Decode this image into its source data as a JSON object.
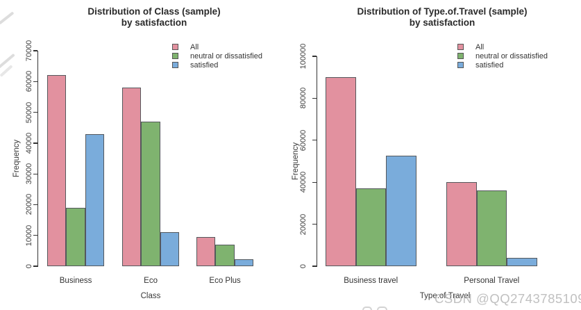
{
  "watermark": {
    "text": "CSDN @QQ2743785109",
    "color": "#b1b1b1"
  },
  "colors": {
    "all": "#e2919f",
    "neutral_or_dissatisfied": "#7fb36f",
    "satisfied": "#7aacdb",
    "bar_border": "#54585c",
    "axis": "#333333"
  },
  "chart_data": [
    {
      "type": "bar",
      "title": "Distribution of Class (sample)",
      "subtitle": "by satisfaction",
      "xlabel": "Class",
      "ylabel": "Frequency",
      "categories": [
        "Business",
        "Eco",
        "Eco Plus"
      ],
      "series": [
        {
          "name": "All",
          "color": "#e2919f",
          "values": [
            62000,
            58000,
            9500
          ]
        },
        {
          "name": "neutral or dissatisfied",
          "color": "#7fb36f",
          "values": [
            19000,
            47000,
            7000
          ]
        },
        {
          "name": "satisfied",
          "color": "#7aacdb",
          "values": [
            43000,
            11000,
            2300
          ]
        }
      ],
      "ylim": [
        0,
        70000
      ],
      "yticks": [
        0,
        10000,
        20000,
        30000,
        40000,
        50000,
        60000,
        70000
      ],
      "grid": false,
      "legend_position": "top-right"
    },
    {
      "type": "bar",
      "title": "Distribution of Type.of.Travel (sample)",
      "subtitle": "by satisfaction",
      "xlabel": "Type.of.Travel",
      "ylabel": "Frequency",
      "categories": [
        "Business travel",
        "Personal Travel"
      ],
      "series": [
        {
          "name": "All",
          "color": "#e2919f",
          "values": [
            90000,
            40000
          ]
        },
        {
          "name": "neutral or dissatisfied",
          "color": "#7fb36f",
          "values": [
            37000,
            36000
          ]
        },
        {
          "name": "satisfied",
          "color": "#7aacdb",
          "values": [
            52500,
            4000
          ]
        }
      ],
      "ylim": [
        0,
        100000
      ],
      "yticks": [
        0,
        20000,
        40000,
        60000,
        80000,
        100000
      ],
      "grid": false,
      "legend_position": "top-right"
    }
  ]
}
